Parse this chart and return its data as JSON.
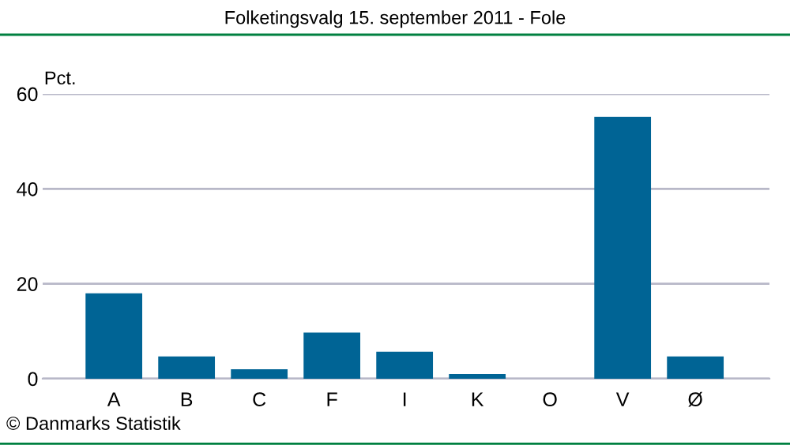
{
  "chart_data": {
    "type": "bar",
    "title": "Folketingsvalg 15. september 2011 - Fole",
    "ylabel": "Pct.",
    "categories": [
      "A",
      "B",
      "C",
      "F",
      "I",
      "K",
      "O",
      "V",
      "Ø"
    ],
    "values": [
      18.0,
      4.7,
      2.0,
      9.7,
      5.7,
      1.0,
      0,
      55.2,
      4.7
    ],
    "color": "#006495",
    "ylim": [
      0,
      60
    ],
    "yticks": [
      0,
      20,
      40,
      60
    ],
    "grid": "y",
    "annotations": [
      "© Danmarks Statistik"
    ]
  }
}
